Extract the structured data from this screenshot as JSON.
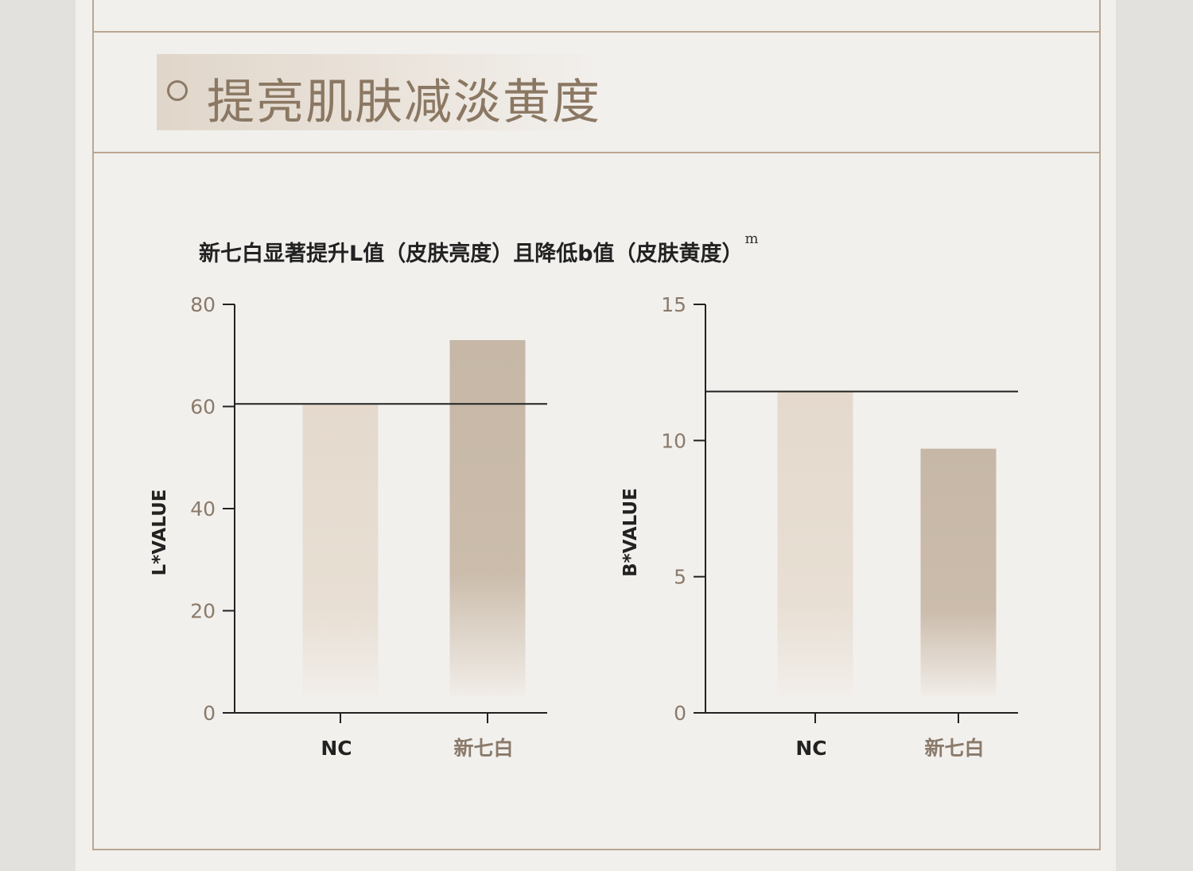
{
  "section": {
    "title": "提亮肌肤减淡黄度"
  },
  "chart_heading": {
    "text": "新七白显著提升L值（皮肤亮度）且降低b值（皮肤黄度）",
    "superscript": "m"
  },
  "colors": {
    "nc_bar": "#e4d9cc",
    "product_bar": "#c6b7a6",
    "axis": "#222222",
    "tick_label": "#8a7a6a",
    "frame": "#b9a792"
  },
  "chart_data": [
    {
      "type": "bar",
      "title": "",
      "xlabel": "",
      "ylabel": "L*VALUE",
      "categories": [
        "NC",
        "新七白"
      ],
      "values": [
        60.5,
        73
      ],
      "ylim": [
        0,
        80
      ],
      "yticks": [
        0,
        20,
        40,
        60,
        80
      ],
      "reference_line": 60.5,
      "grid": false
    },
    {
      "type": "bar",
      "title": "",
      "xlabel": "",
      "ylabel": "B*VALUE",
      "categories": [
        "NC",
        "新七白"
      ],
      "values": [
        11.8,
        9.7
      ],
      "ylim": [
        0,
        15
      ],
      "yticks": [
        0,
        5,
        10,
        15
      ],
      "reference_line": 11.8,
      "grid": false
    }
  ]
}
